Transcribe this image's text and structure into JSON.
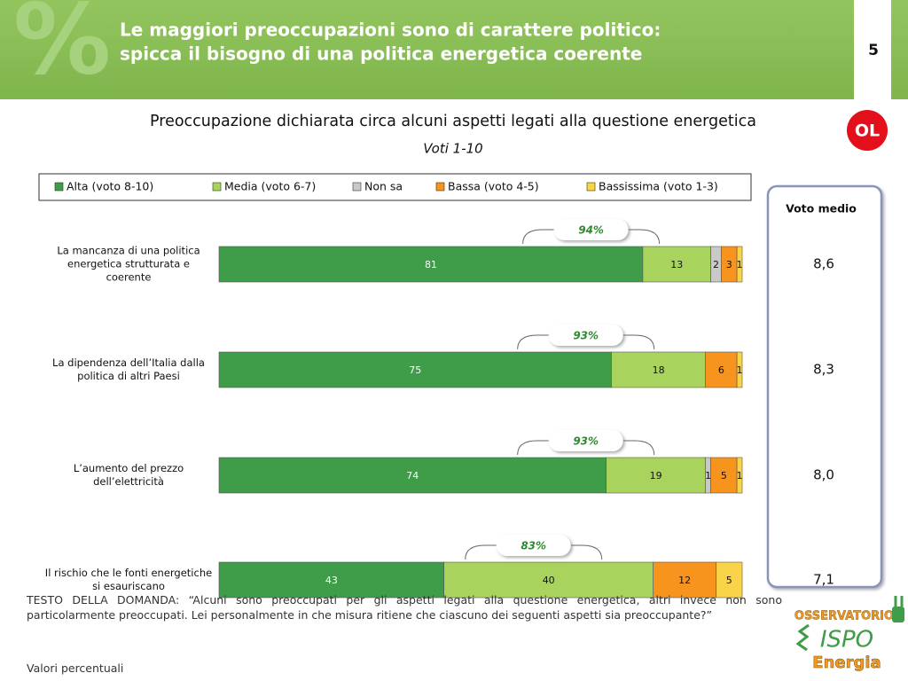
{
  "header": {
    "title_lines": [
      "Le maggiori preoccupazioni sono di carattere politico:",
      "spicca il bisogno di una politica energetica coerente"
    ],
    "page_number": "5",
    "badge": "OL"
  },
  "chart_data": {
    "type": "stacked-bar",
    "title": "Preoccupazione dichiarata circa alcuni aspetti legati alla questione energetica",
    "subtitle": "Voti 1-10",
    "categories": [
      "La mancanza di una politica energetica strutturata e coerente",
      "La dipendenza dell’Italia dalla politica di altri Paesi",
      "L’aumento del prezzo dell’elettricità",
      "Il rischio che le fonti energetiche si esauriscano"
    ],
    "series": [
      {
        "name": "Alta (voto 8-10)",
        "color": "#3f9c48",
        "values": [
          81,
          75,
          74,
          43
        ]
      },
      {
        "name": "Media (voto 6-7)",
        "color": "#a8d45e",
        "values": [
          13,
          18,
          19,
          40
        ]
      },
      {
        "name": "Non sa",
        "color": "#c9c9c9",
        "values": [
          2,
          null,
          1,
          null
        ]
      },
      {
        "name": "Bassa (voto 4-5)",
        "color": "#f7941d",
        "values": [
          3,
          6,
          5,
          12
        ]
      },
      {
        "name": "Bassissima (voto 1-3)",
        "color": "#f9d448",
        "values": [
          1,
          1,
          1,
          5
        ]
      }
    ],
    "xlim": [
      0,
      100
    ],
    "legend": "top",
    "totals": {
      "values": [
        94,
        93,
        93,
        83
      ],
      "value_labels": [
        "94%",
        "93%",
        "93%",
        "83%"
      ]
    }
  },
  "side_panel": {
    "title": "Voto medio",
    "values": [
      8.6,
      8.3,
      8.0,
      7.1
    ],
    "value_labels": [
      "8,6",
      "8,3",
      "8,0",
      "7,1"
    ]
  },
  "footer": {
    "question": "TESTO DELLA DOMANDA: “Alcuni sono preoccupati per gli aspetti legati alla questione energetica, altri invece non sono particolarmente preoccupati. Lei personalmente in che misura ritiene che ciascuno dei seguenti aspetti sia preoccupante?”",
    "note": "Valori percentuali"
  },
  "logo": {
    "top": "OSSERVATORIO",
    "middle": "ISPO",
    "bottom": "Energia"
  }
}
